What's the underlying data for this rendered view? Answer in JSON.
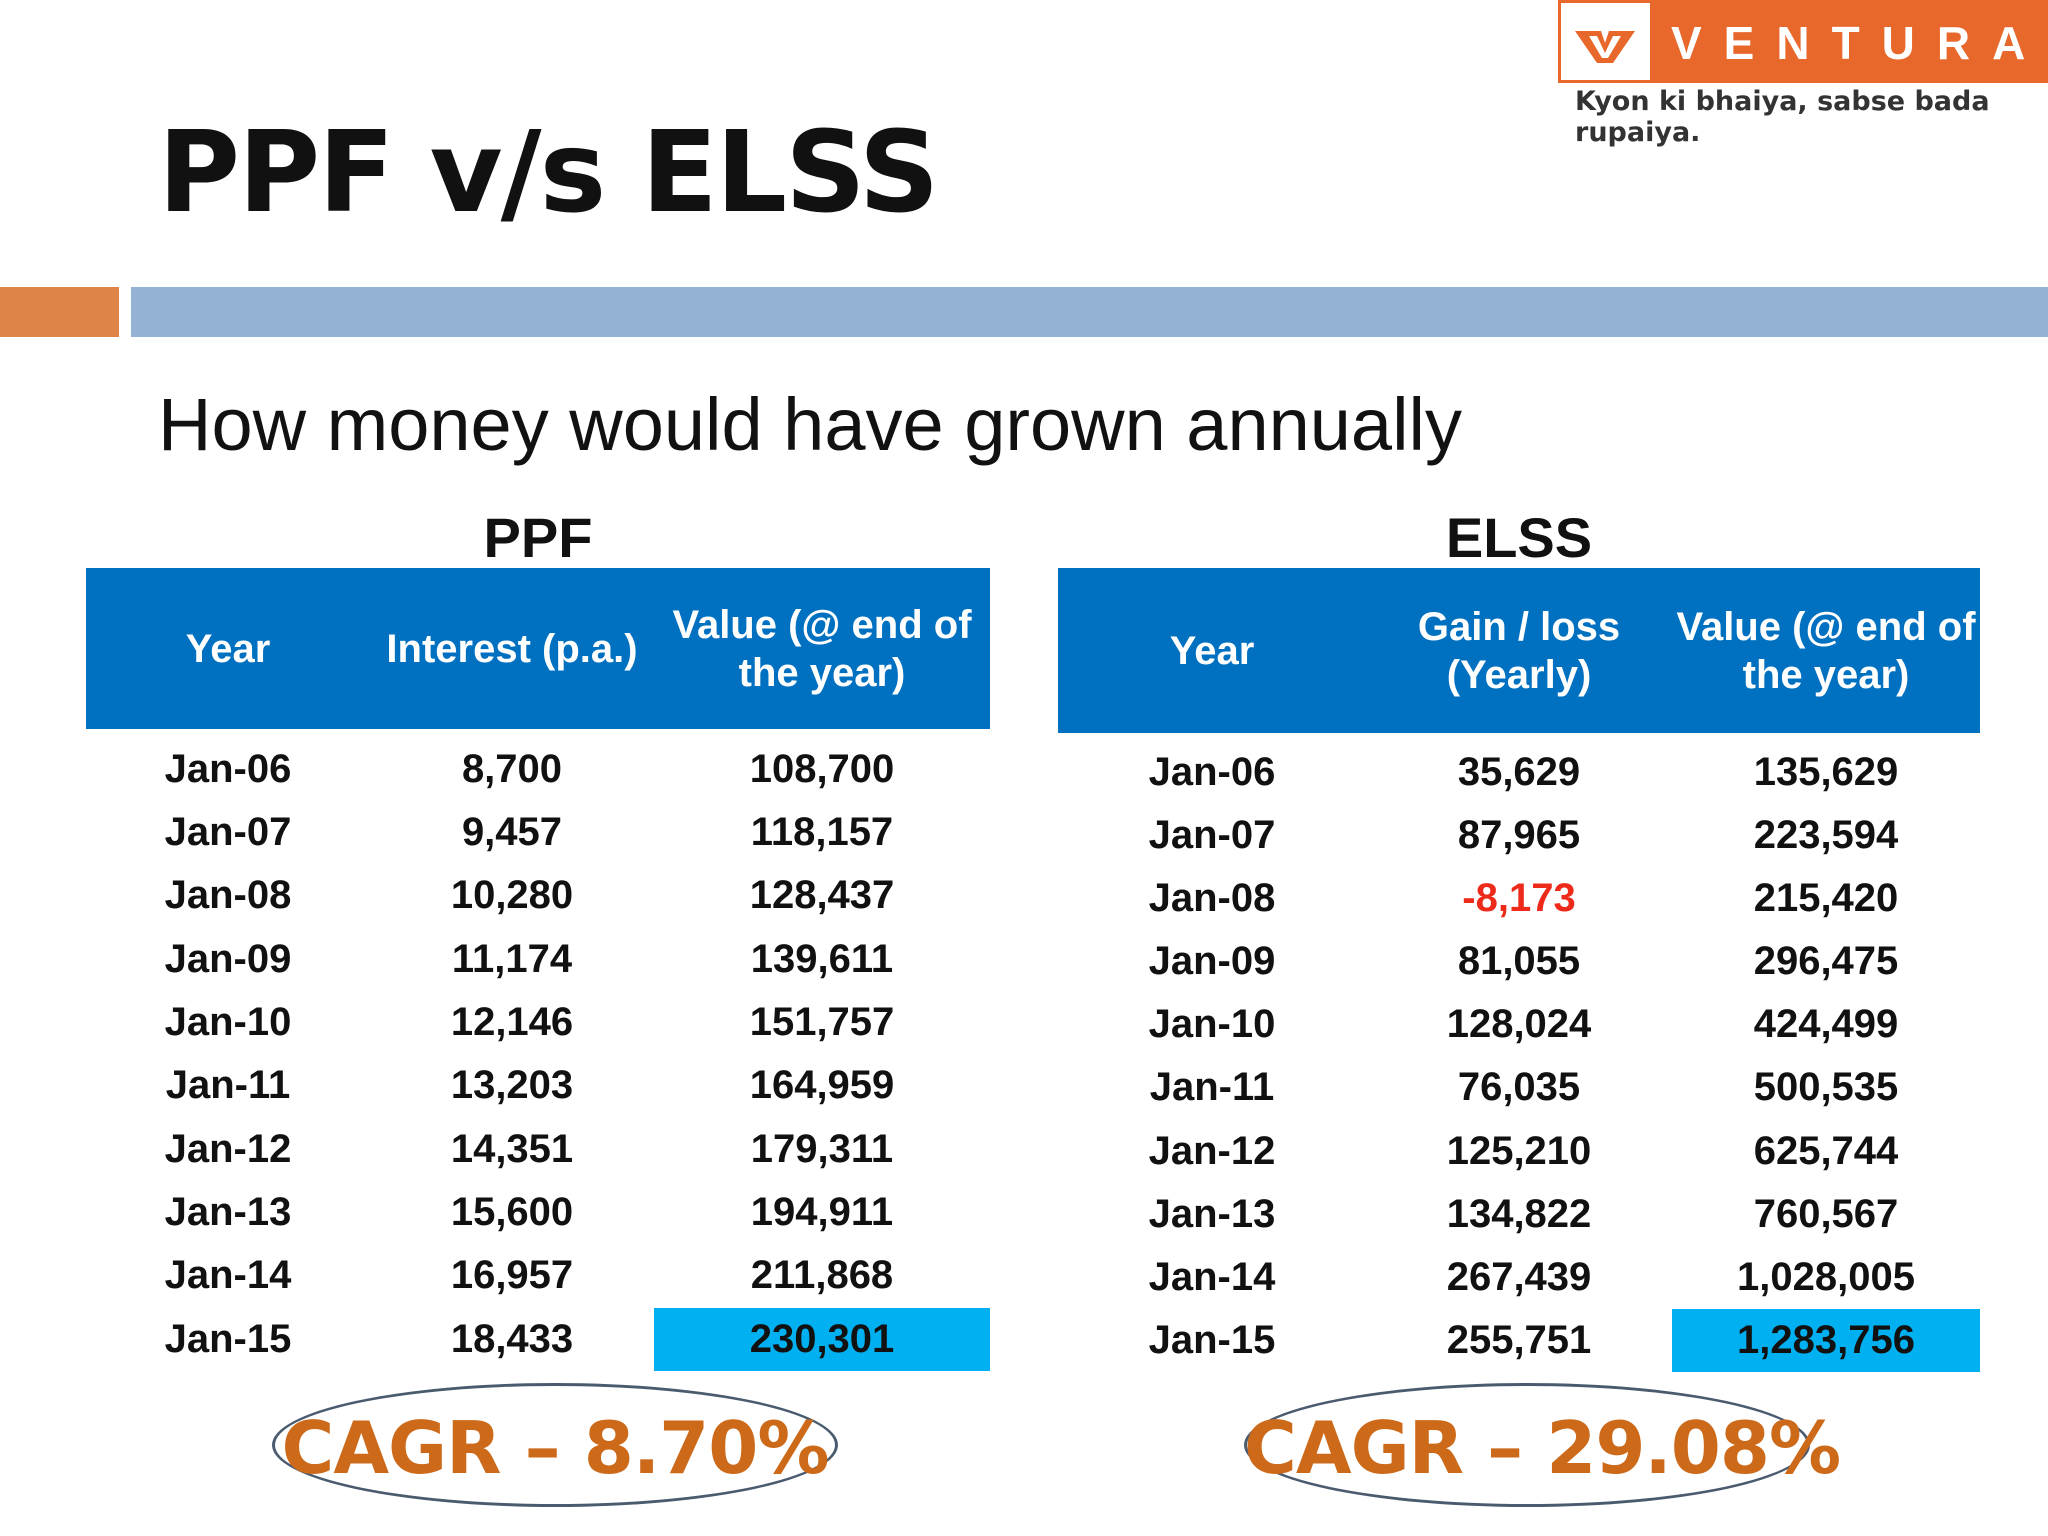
{
  "logo": {
    "name": "VENTURA",
    "tagline": "Kyon ki bhaiya, sabse bada rupaiya."
  },
  "title": "PPF v/s ELSS",
  "subtitle": "How money would have grown annually",
  "colors": {
    "header_blue": "#0070c0",
    "highlight_cyan": "#00b0f0",
    "accent_orange": "#e8672a",
    "cagr_text": "#cc6a1a",
    "negative_red": "#ee2b1b",
    "divider_blue": "#94b3d4"
  },
  "ppf": {
    "title": "PPF",
    "headers": [
      "Year",
      "Interest (p.a.)",
      "Value (@ end of the year)"
    ],
    "rows": [
      [
        "Jan-06",
        "8,700",
        "108,700"
      ],
      [
        "Jan-07",
        "9,457",
        "118,157"
      ],
      [
        "Jan-08",
        "10,280",
        "128,437"
      ],
      [
        "Jan-09",
        "11,174",
        "139,611"
      ],
      [
        "Jan-10",
        "12,146",
        "151,757"
      ],
      [
        "Jan-11",
        "13,203",
        "164,959"
      ],
      [
        "Jan-12",
        "14,351",
        "179,311"
      ],
      [
        "Jan-13",
        "15,600",
        "194,911"
      ],
      [
        "Jan-14",
        "16,957",
        "211,868"
      ],
      [
        "Jan-15",
        "18,433",
        "230,301"
      ]
    ],
    "cagr": "CAGR – 8.70%"
  },
  "elss": {
    "title": "ELSS",
    "headers": [
      "Year",
      "Gain / loss (Yearly)",
      "Value (@ end of the year)"
    ],
    "rows": [
      [
        "Jan-06",
        "35,629",
        "135,629"
      ],
      [
        "Jan-07",
        "87,965",
        "223,594"
      ],
      [
        "Jan-08",
        "-8,173",
        "215,420"
      ],
      [
        "Jan-09",
        "81,055",
        "296,475"
      ],
      [
        "Jan-10",
        "128,024",
        "424,499"
      ],
      [
        "Jan-11",
        "76,035",
        "500,535"
      ],
      [
        "Jan-12",
        "125,210",
        "625,744"
      ],
      [
        "Jan-13",
        "134,822",
        "760,567"
      ],
      [
        "Jan-14",
        "267,439",
        "1,028,005"
      ],
      [
        "Jan-15",
        "255,751",
        "1,283,756"
      ]
    ],
    "cagr": "CAGR – 29.08%"
  }
}
